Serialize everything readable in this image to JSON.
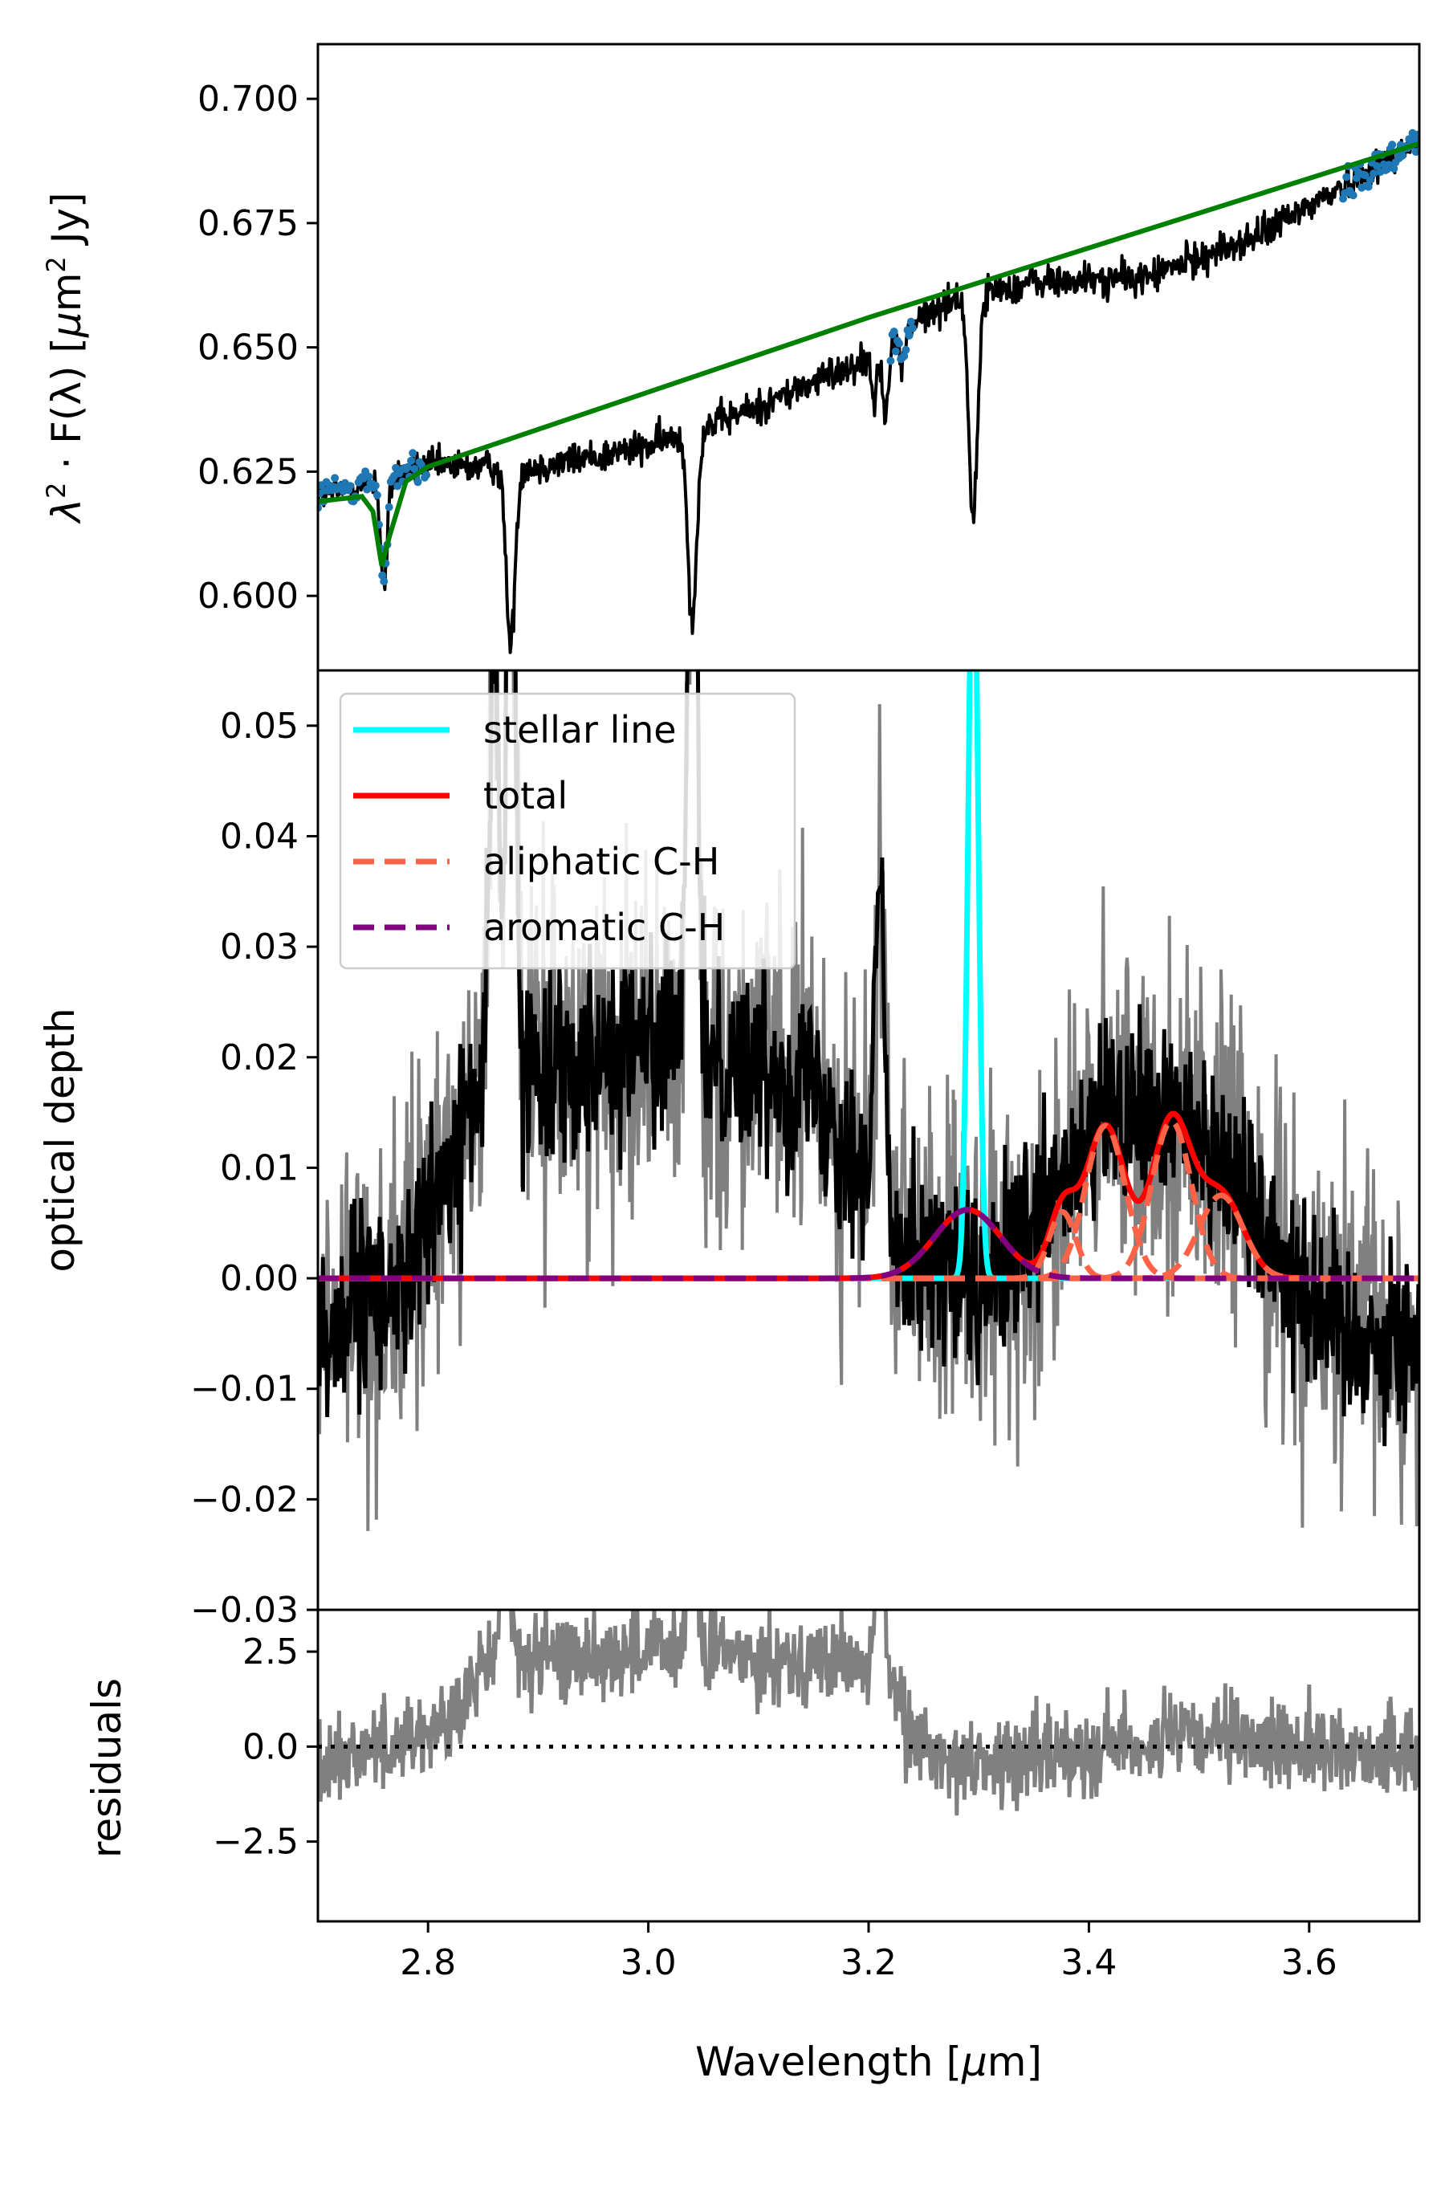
{
  "chart_data": [
    {
      "type": "line",
      "panel": "top",
      "xlim": [
        2.7,
        3.7
      ],
      "ylim": [
        0.585,
        0.711
      ],
      "ylabel_parts": {
        "lambda": "λ",
        "sq": "2",
        "mid": "· F(λ) [",
        "mu": "μ",
        "m": "m",
        "sq2": "2",
        "end": " Jy]"
      },
      "y_ticks": [
        0.6,
        0.625,
        0.65,
        0.675,
        0.7
      ],
      "y_tick_labels": [
        "0.600",
        "0.625",
        "0.650",
        "0.675",
        "0.700"
      ],
      "series": [
        {
          "key": "spectrum",
          "color": "#000000",
          "style": "solid",
          "baseline": [
            [
              2.7,
              0.62
            ],
            [
              2.8,
              0.626
            ],
            [
              2.9,
              0.626
            ],
            [
              3.0,
              0.63
            ],
            [
              3.1,
              0.638
            ],
            [
              3.2,
              0.648
            ],
            [
              3.25,
              0.656
            ],
            [
              3.28,
              0.66
            ],
            [
              3.35,
              0.663
            ],
            [
              3.45,
              0.664
            ],
            [
              3.55,
              0.672
            ],
            [
              3.65,
              0.685
            ],
            [
              3.7,
              0.692
            ]
          ],
          "absorption_lines": [
            [
              2.76,
              0.022,
              0.003
            ],
            [
              2.875,
              0.036,
              0.004
            ],
            [
              3.04,
              0.038,
              0.004
            ],
            [
              3.295,
              0.045,
              0.004
            ],
            [
              3.205,
              0.01,
              0.002
            ],
            [
              3.215,
              0.012,
              0.003
            ],
            [
              3.23,
              0.006,
              0.003
            ]
          ],
          "noise": 0.004
        },
        {
          "key": "continuum_points",
          "color": "#1f77b4",
          "style": "points",
          "ranges": [
            [
              2.7,
              2.8
            ],
            [
              3.22,
              3.24
            ],
            [
              3.63,
              3.7
            ]
          ]
        },
        {
          "key": "continuum_fit",
          "color": "#008000",
          "style": "solid",
          "points": [
            [
              2.7,
              0.619
            ],
            [
              2.74,
              0.62
            ],
            [
              2.75,
              0.617
            ],
            [
              2.758,
              0.606
            ],
            [
              2.765,
              0.612
            ],
            [
              2.78,
              0.623
            ],
            [
              2.8,
              0.626
            ],
            [
              3.0,
              0.641
            ],
            [
              3.2,
              0.656
            ],
            [
              3.4,
              0.67
            ],
            [
              3.6,
              0.684
            ],
            [
              3.7,
              0.691
            ]
          ]
        }
      ]
    },
    {
      "type": "line",
      "panel": "middle",
      "xlim": [
        2.7,
        3.7
      ],
      "ylim": [
        -0.03,
        0.055
      ],
      "ylabel": "optical depth",
      "y_ticks": [
        -0.03,
        -0.02,
        -0.01,
        0.0,
        0.01,
        0.02,
        0.03,
        0.04,
        0.05
      ],
      "y_tick_labels": [
        "−0.03",
        "−0.02",
        "−0.01",
        "0.00",
        "0.01",
        "0.02",
        "0.03",
        "0.04",
        "0.05"
      ],
      "legend": {
        "position": "upper-left",
        "entries": [
          {
            "label": "stellar line",
            "color": "#00ffff",
            "style": "solid"
          },
          {
            "label": "total",
            "color": "#ff0000",
            "style": "solid"
          },
          {
            "label": "aliphatic C-H",
            "color": "#ff6347",
            "style": "dashed"
          },
          {
            "label": "aromatic C-H",
            "color": "#800080",
            "style": "dashed"
          }
        ]
      },
      "observed": {
        "trend": [
          [
            2.7,
            -0.005
          ],
          [
            2.78,
            0.0
          ],
          [
            2.85,
            0.018
          ],
          [
            3.0,
            0.022
          ],
          [
            3.15,
            0.018
          ],
          [
            3.22,
            0.005
          ],
          [
            3.3,
            -0.002
          ],
          [
            3.35,
            0.004
          ],
          [
            3.42,
            0.015
          ],
          [
            3.5,
            0.014
          ],
          [
            3.57,
            0.003
          ],
          [
            3.63,
            -0.005
          ],
          [
            3.7,
            -0.006
          ]
        ],
        "spikes": [
          [
            2.86,
            0.04
          ],
          [
            2.875,
            0.06
          ],
          [
            3.04,
            0.06
          ],
          [
            3.21,
            0.03
          ]
        ],
        "noise_black": 0.006,
        "noise_gray": 0.011
      },
      "models": {
        "stellar_line": {
          "center": 3.295,
          "width": 0.0045,
          "amplitude": 0.07
        },
        "aromatic_CH": {
          "center": 3.29,
          "width": 0.03,
          "amplitude": 0.0062
        },
        "aliphatic_CH": [
          {
            "center": 3.376,
            "width": 0.012,
            "amplitude": 0.006
          },
          {
            "center": 3.415,
            "width": 0.018,
            "amplitude": 0.0138
          },
          {
            "center": 3.475,
            "width": 0.018,
            "amplitude": 0.0142
          },
          {
            "center": 3.52,
            "width": 0.02,
            "amplitude": 0.0075
          }
        ]
      }
    },
    {
      "type": "line",
      "panel": "bottom",
      "xlim": [
        2.7,
        3.7
      ],
      "ylim": [
        -4.6,
        3.6
      ],
      "ylabel": "residuals",
      "xlabel_parts": {
        "pre": "Wavelength [",
        "mu": "μ",
        "post": "m]"
      },
      "x_ticks": [
        2.8,
        3.0,
        3.2,
        3.4,
        3.6
      ],
      "x_tick_labels": [
        "2.8",
        "3.0",
        "3.2",
        "3.4",
        "3.6"
      ],
      "y_ticks": [
        -2.5,
        0.0,
        2.5
      ],
      "y_tick_labels": [
        "−2.5",
        "0.0",
        "2.5"
      ],
      "zero_line": {
        "value": 0.0,
        "style": "dotted",
        "color": "#000000"
      },
      "residual": {
        "color": "#808080",
        "trend": [
          [
            2.7,
            -0.4
          ],
          [
            2.78,
            0.2
          ],
          [
            2.83,
            0.8
          ],
          [
            2.85,
            2.2
          ],
          [
            3.0,
            2.5
          ],
          [
            3.15,
            2.3
          ],
          [
            3.22,
            2.0
          ],
          [
            3.24,
            0.0
          ],
          [
            3.3,
            -0.5
          ],
          [
            3.4,
            0.0
          ],
          [
            3.5,
            0.2
          ],
          [
            3.6,
            0.0
          ],
          [
            3.7,
            -0.3
          ]
        ],
        "spikes": [
          [
            2.87,
            3.6
          ],
          [
            3.04,
            3.6
          ],
          [
            3.21,
            3.6
          ]
        ],
        "noise": 0.8
      }
    }
  ]
}
